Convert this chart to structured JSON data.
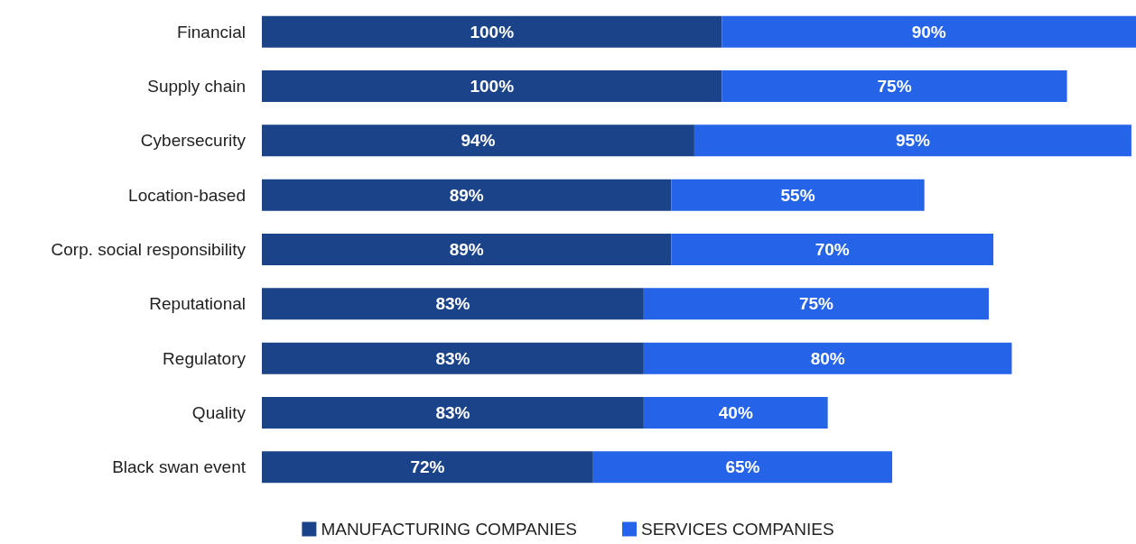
{
  "chart_data": {
    "type": "bar",
    "orientation": "horizontal",
    "stacked": true,
    "legend": "bottom",
    "categories": [
      "Financial",
      "Supply chain",
      "Cybersecurity",
      "Location-based",
      "Corp. social responsibility",
      "Reputational",
      "Regulatory",
      "Quality",
      "Black swan event"
    ],
    "series": [
      {
        "name": "MANUFACTURING COMPANIES",
        "color": "#1b4389",
        "values": [
          100,
          100,
          94,
          89,
          89,
          83,
          83,
          83,
          72
        ],
        "value_labels": [
          "100%",
          "100%",
          "94%",
          "89%",
          "89%",
          "83%",
          "83%",
          "83%",
          "72%"
        ]
      },
      {
        "name": "SERVICES COMPANIES",
        "color": "#2563e8",
        "values": [
          90,
          75,
          95,
          55,
          70,
          75,
          80,
          40,
          65
        ],
        "value_labels": [
          "90%",
          "75%",
          "95%",
          "55%",
          "70%",
          "75%",
          "80%",
          "40%",
          "65%"
        ]
      }
    ]
  }
}
